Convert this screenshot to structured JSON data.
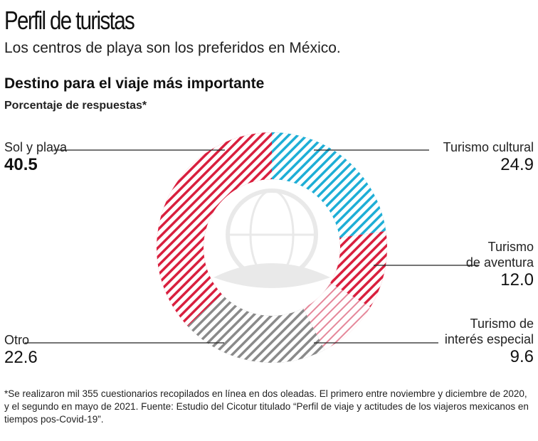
{
  "header": {
    "title": "Perfil de turistas",
    "subtitle": "Los centros de playa son los preferidos en México."
  },
  "chart_data": {
    "type": "pie",
    "donut": true,
    "title": "Destino para el viaje más importante",
    "subtitle": "Porcentaje de respuestas*",
    "categories": [
      "Turismo cultural",
      "Turismo de aventura",
      "Turismo de interés especial",
      "Otro",
      "Sol y playa"
    ],
    "values": [
      24.9,
      12.0,
      9.6,
      22.6,
      40.5
    ],
    "colors": [
      "#1eaed6",
      "#d91f3e",
      "#e5879a",
      "#8a8a8a",
      "#d91f3e"
    ],
    "labels": {
      "sol": {
        "line1": "Sol y playa",
        "value": "40.5"
      },
      "cultural": {
        "line1": "Turismo cultural",
        "value": "24.9"
      },
      "aventura": {
        "line1": "Turismo",
        "line2": "de aventura",
        "value": "12.0"
      },
      "especial": {
        "line1": "Turismo de",
        "line2": "interés especial",
        "value": "9.6"
      },
      "otro": {
        "line1": "Otro",
        "value": "22.6"
      }
    }
  },
  "footnote": "*Se realizaron mil 355 cuestionarios recopilados en línea en dos oleadas. El primero entre noviembre y diciembre de 2020, y el segundo en mayo de 2021. Fuente: Estudio del Cicotur titulado “Perfil de viaje y actitudes de los viajeros mexicanos en tiempos pos-Covid-19”."
}
